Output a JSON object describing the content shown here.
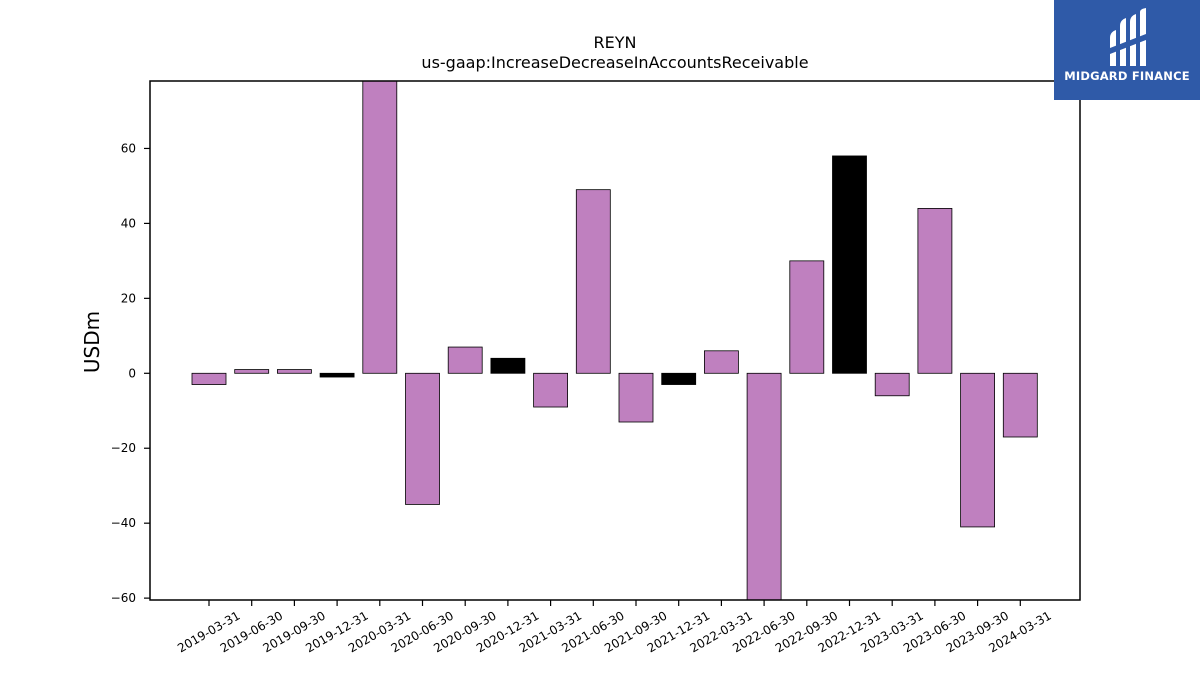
{
  "chart_data": {
    "type": "bar",
    "title": "REYN",
    "subtitle": "us-gaap:IncreaseDecreaseInAccountsReceivable",
    "xlabel": "",
    "ylabel": "USDm",
    "ylim": [
      -60.5,
      78
    ],
    "yticks": [
      -60,
      -40,
      -20,
      0,
      20,
      40,
      60
    ],
    "ytick_labels": [
      "−60",
      "−40",
      "−20",
      "0",
      "20",
      "40",
      "60"
    ],
    "grid": false,
    "categories": [
      "2019-03-31",
      "2019-06-30",
      "2019-09-30",
      "2019-12-31",
      "2020-03-31",
      "2020-06-30",
      "2020-09-30",
      "2020-12-31",
      "2021-03-31",
      "2021-06-30",
      "2021-09-30",
      "2021-12-31",
      "2022-03-31",
      "2022-06-30",
      "2022-09-30",
      "2022-12-31",
      "2023-03-31",
      "2023-06-30",
      "2023-09-30",
      "2024-03-31"
    ],
    "values": [
      -3,
      1,
      1,
      -1,
      78,
      -35,
      7,
      4,
      -9,
      49,
      -13,
      -3,
      6,
      -61,
      30,
      58,
      -6,
      44,
      -41,
      -17
    ],
    "highlighted": [
      false,
      false,
      false,
      true,
      false,
      false,
      false,
      true,
      false,
      false,
      false,
      true,
      false,
      false,
      false,
      true,
      false,
      false,
      false,
      false
    ],
    "colors": {
      "normal": "#bf80bf",
      "highlight": "#000000",
      "edge": "#000000"
    }
  },
  "logo": {
    "text": "MIDGARD FINANCE",
    "background": "#2f5aa8"
  }
}
